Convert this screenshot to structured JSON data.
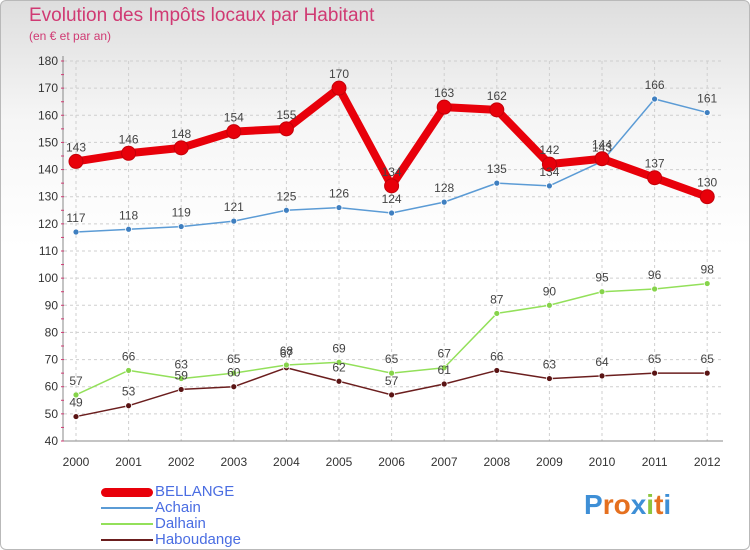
{
  "title": "Evolution des Impôts locaux par Habitant",
  "subtitle": "(en € et par an)",
  "logo": {
    "letters": [
      "P",
      "r",
      "o",
      "x",
      "i",
      "t",
      "i"
    ],
    "colors": [
      "#3e8fd6",
      "#e5701f",
      "#e5701f",
      "#3e8fd6",
      "#8cc63f",
      "#e5701f",
      "#3e8fd6"
    ]
  },
  "chart_data": {
    "type": "line",
    "title": "Evolution des Impôts locaux par Habitant",
    "ylabel": "(en € et par an)",
    "xlabel": "",
    "ylim": [
      40,
      180
    ],
    "yticks": [
      40,
      50,
      60,
      70,
      80,
      90,
      100,
      110,
      120,
      130,
      140,
      150,
      160,
      170,
      180
    ],
    "x": [
      "2000",
      "2001",
      "2002",
      "2003",
      "2004",
      "2005",
      "2006",
      "2007",
      "2008",
      "2009",
      "2010",
      "2011",
      "2012"
    ],
    "grid": true,
    "legend_position": "bottom-left",
    "series": [
      {
        "name": "BELLANGE",
        "color": "#e8000a",
        "values": [
          143,
          146,
          148,
          154,
          155,
          170,
          134,
          163,
          162,
          142,
          144,
          137,
          130
        ]
      },
      {
        "name": "Achain",
        "color": "#5b9bd5",
        "values": [
          117,
          118,
          119,
          121,
          125,
          126,
          124,
          128,
          135,
          134,
          143,
          166,
          161
        ]
      },
      {
        "name": "Dalhain",
        "color": "#93e05a",
        "values": [
          57,
          66,
          63,
          65,
          68,
          69,
          65,
          67,
          87,
          90,
          95,
          96,
          98
        ]
      },
      {
        "name": "Haboudange",
        "color": "#6b1e1e",
        "values": [
          49,
          53,
          59,
          60,
          67,
          62,
          57,
          61,
          66,
          63,
          64,
          65,
          65
        ]
      }
    ]
  }
}
